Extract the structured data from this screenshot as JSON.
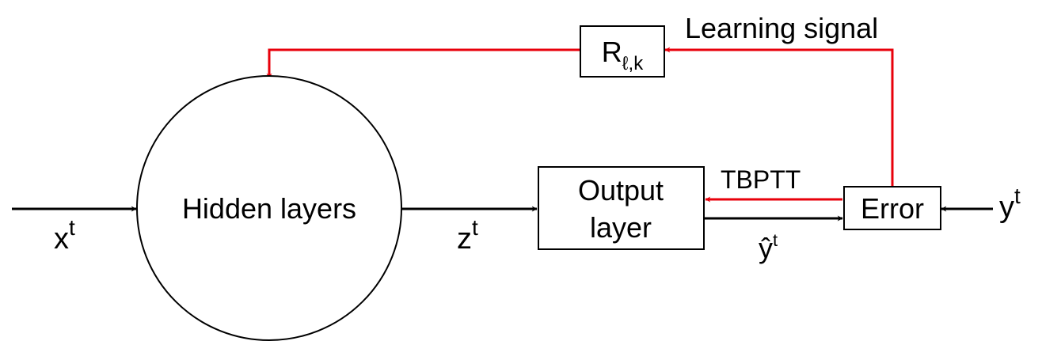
{
  "nodes": {
    "hidden": {
      "label": "Hidden layers"
    },
    "output": {
      "line1": "Output",
      "line2": "layer"
    },
    "error": {
      "label": "Error"
    },
    "r": {
      "base": "R",
      "sub": "ℓ,k"
    }
  },
  "signals": {
    "x": {
      "base": "x",
      "sup": "t"
    },
    "z": {
      "base": "z",
      "sup": "t"
    },
    "yhat": {
      "base": "ŷ",
      "sup": "t"
    },
    "y": {
      "base": "y",
      "sup": "t"
    }
  },
  "feedback": {
    "learning": "Learning signal",
    "tbptt": "TBPTT"
  },
  "colors": {
    "line": "#000000",
    "feedback": "#e8000b"
  }
}
